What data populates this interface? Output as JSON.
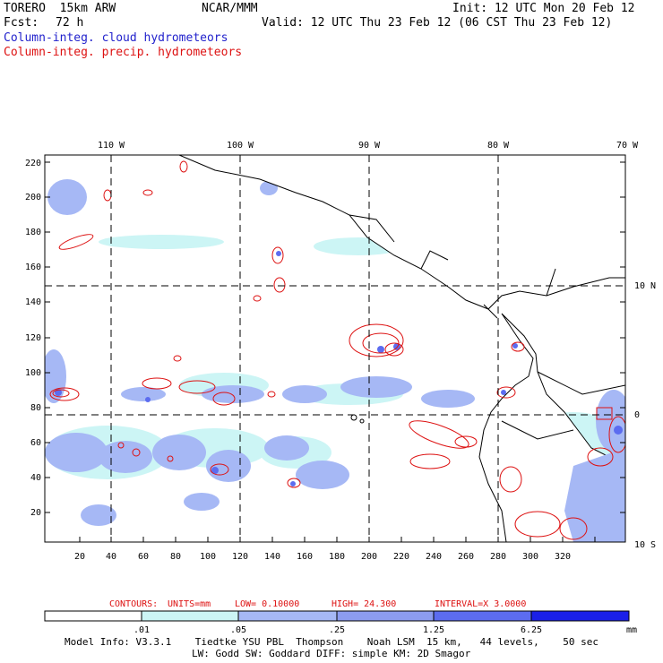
{
  "header": {
    "model": "TORERO  15km ARW",
    "org": "NCAR/MMM",
    "init": "Init: 12 UTC Mon 20 Feb 12",
    "fcst_label": "Fcst:",
    "fcst_value": "72 h",
    "valid": "Valid: 12 UTC Thu 23 Feb 12 (06 CST Thu 23 Feb 12)",
    "legend_cloud": "Column-integ. cloud hydrometeors",
    "legend_precip": "Column-integ. precip. hydrometeors"
  },
  "colors": {
    "cloud_blue": "#2222cc",
    "precip_red": "#dd1111",
    "shade_1": "#ccf5f5",
    "shade_2": "#a6b8f5",
    "shade_3": "#8c9cf0",
    "shade_4": "#5c6cf0",
    "shade_5": "#3a4af0",
    "shade_6": "#1a20e8"
  },
  "map": {
    "top_lon_labels": [
      "110 W",
      "100 W",
      "90 W",
      "80 W",
      "70 W"
    ],
    "right_lat_labels": [
      "10 N",
      "0",
      "10 S"
    ],
    "y_ticks": [
      "220",
      "200",
      "180",
      "160",
      "140",
      "120",
      "100",
      "80",
      "60",
      "40",
      "20"
    ],
    "x_ticks": [
      "20",
      "40",
      "60",
      "80",
      "100",
      "120",
      "140",
      "160",
      "180",
      "200",
      "220",
      "240",
      "260",
      "280",
      "300",
      "320"
    ]
  },
  "contour_info": {
    "label": "CONTOURS:",
    "units": "UNITS=mm",
    "low": "LOW= 0.10000",
    "high": "HIGH=  24.300",
    "interval": "INTERVAL=X  3.0000"
  },
  "colorbar": {
    "labels": [
      ".01",
      ".05",
      ".25",
      "1.25",
      "6.25"
    ],
    "unit": "mm"
  },
  "footer": {
    "line1": "Model Info: V3.3.1    Tiedtke YSU PBL  Thompson    Noah LSM  15 km,   44 levels,    50 sec",
    "line2": "LW: Godd SW: Goddard DIFF: simple KM: 2D Smagor"
  }
}
